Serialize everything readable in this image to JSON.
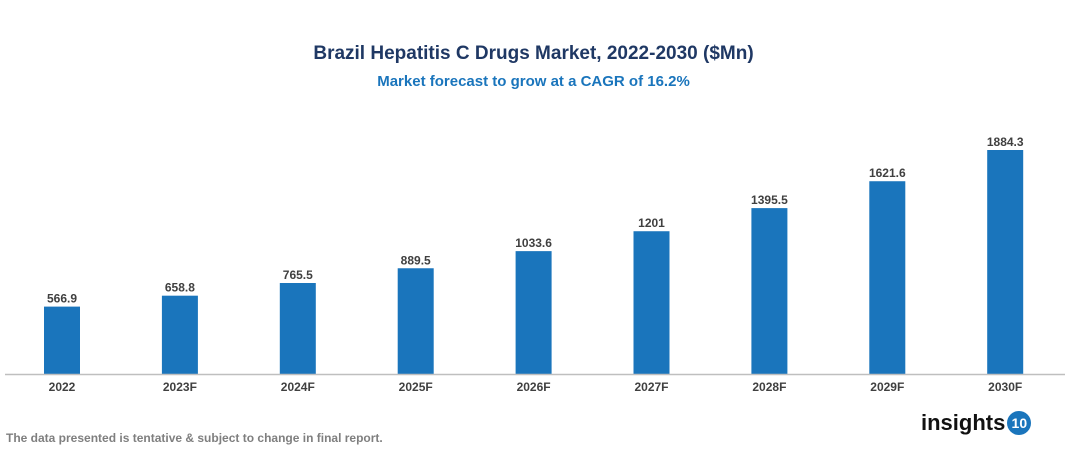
{
  "chart_data": {
    "type": "bar",
    "title": "Brazil Hepatitis C Drugs Market, 2022-2030 ($Mn)",
    "subtitle": "Market forecast to grow at a CAGR of 16.2%",
    "categories": [
      "2022",
      "2023F",
      "2024F",
      "2025F",
      "2026F",
      "2027F",
      "2028F",
      "2029F",
      "2030F"
    ],
    "values": [
      566.9,
      658.8,
      765.5,
      889.5,
      1033.6,
      1201,
      1395.5,
      1621.6,
      1884.3
    ],
    "value_labels": [
      "566.9",
      "658.8",
      "765.5",
      "889.5",
      "1033.6",
      "1201",
      "1395.5",
      "1621.6",
      "1884.3"
    ],
    "xlabel": "",
    "ylabel": "",
    "grid": false,
    "bar_color": "#1a75bc"
  },
  "footer": "The data presented is tentative & subject to change in final report.",
  "logo": {
    "text": "insights",
    "badge": "10"
  }
}
